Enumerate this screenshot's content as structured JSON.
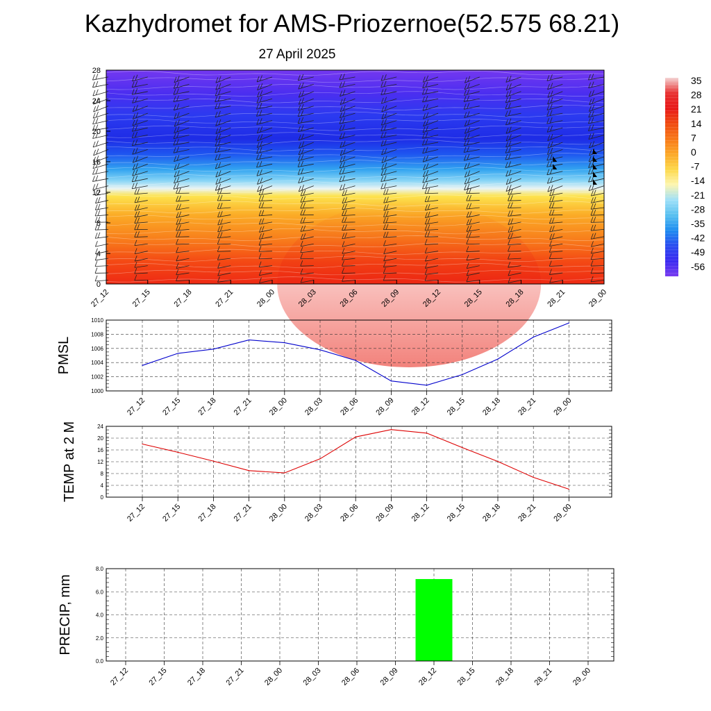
{
  "title": "Kazhydromet for AMS-Priozernoe(52.575 68.21)",
  "subtitle": "27 April 2025",
  "times": [
    "27_12",
    "27_15",
    "27_18",
    "27_21",
    "28_00",
    "28_03",
    "28_06",
    "28_09",
    "28_12",
    "28_15",
    "28_18",
    "28_21",
    "29_00"
  ],
  "chart_data": [
    {
      "type": "heatmap",
      "title": "Kazhydromet for AMS-Priozernoe(52.575 68.21)",
      "subtitle": "27 April 2025",
      "x_categories": [
        "27_12",
        "27_15",
        "27_18",
        "27_21",
        "28_00",
        "28_03",
        "28_06",
        "28_09",
        "28_12",
        "28_15",
        "28_18",
        "28_21",
        "29_00"
      ],
      "ylim": [
        0,
        28
      ],
      "yticks": [
        0,
        4,
        8,
        12,
        16,
        20,
        24,
        28
      ],
      "colorbar": {
        "labels": [
          "35",
          "28",
          "21",
          "14",
          "7",
          "0",
          "-7",
          "-14",
          "-21",
          "-28",
          "-35",
          "-42",
          "-49",
          "-56"
        ],
        "colors": [
          "#f4d4d4",
          "#e83030",
          "#e81818",
          "#f04a10",
          "#f87818",
          "#fca828",
          "#fdd84a",
          "#fdf6b0",
          "#9fe0f8",
          "#58c0f0",
          "#1e8cf0",
          "#2a4cf0",
          "#3a2af0",
          "#7a3cf0"
        ]
      },
      "layers": [
        {
          "y": 0,
          "color": "#ee2a14"
        },
        {
          "y": 3,
          "color": "#f44a14"
        },
        {
          "y": 6,
          "color": "#f8801c"
        },
        {
          "y": 9,
          "color": "#fbab26"
        },
        {
          "y": 11.5,
          "color": "#fde34e"
        },
        {
          "y": 12.5,
          "color": "#eaf4f4"
        },
        {
          "y": 13.5,
          "color": "#8ad6f6"
        },
        {
          "y": 15,
          "color": "#32a4f0"
        },
        {
          "y": 17,
          "color": "#1e56f0"
        },
        {
          "y": 19,
          "color": "#1e2ce6"
        },
        {
          "y": 22,
          "color": "#2b3af0"
        },
        {
          "y": 25,
          "color": "#4c2ef0"
        },
        {
          "y": 28,
          "color": "#7438f0"
        }
      ],
      "grid": false
    },
    {
      "type": "line",
      "ylabel": "PMSL",
      "categories": [
        "27_12",
        "27_15",
        "27_18",
        "27_21",
        "28_00",
        "28_03",
        "28_06",
        "28_09",
        "28_12",
        "28_15",
        "28_18",
        "28_21",
        "29_00"
      ],
      "values": [
        1003.6,
        1005.3,
        1005.9,
        1007.2,
        1006.8,
        1005.8,
        1004.3,
        1001.4,
        1000.8,
        1002.3,
        1004.5,
        1007.6,
        1009.6
      ],
      "ylim": [
        1000,
        1010
      ],
      "yticks": [
        1000,
        1002,
        1004,
        1006,
        1008,
        1010
      ],
      "color": "#0000cc",
      "grid": true
    },
    {
      "type": "line",
      "ylabel": "TEMP at 2 M",
      "categories": [
        "27_12",
        "27_15",
        "27_18",
        "27_21",
        "28_00",
        "28_03",
        "28_06",
        "28_09",
        "28_12",
        "28_15",
        "28_18",
        "28_21",
        "29_00"
      ],
      "values": [
        18.0,
        15.2,
        12.2,
        9.0,
        8.2,
        13.0,
        20.4,
        22.9,
        21.7,
        16.8,
        12.1,
        6.7,
        2.7
      ],
      "ylim": [
        0,
        24
      ],
      "yticks": [
        0,
        4,
        8,
        12,
        16,
        20,
        24
      ],
      "color": "#dd0000",
      "grid": true
    },
    {
      "type": "bar",
      "ylabel": "PRECIP, mm",
      "categories": [
        "27_12",
        "27_15",
        "27_18",
        "27_21",
        "28_00",
        "28_03",
        "28_06",
        "28_09",
        "28_12",
        "28_15",
        "28_18",
        "28_21",
        "29_00"
      ],
      "values": [
        0,
        0,
        0,
        0,
        0,
        0,
        0,
        0,
        7.1,
        0,
        0,
        0,
        0
      ],
      "ylim": [
        0,
        8
      ],
      "yticks": [
        "0.0",
        "2.0",
        "4.0",
        "6.0",
        "8.0"
      ],
      "color": "#00ff00",
      "grid": true
    }
  ]
}
